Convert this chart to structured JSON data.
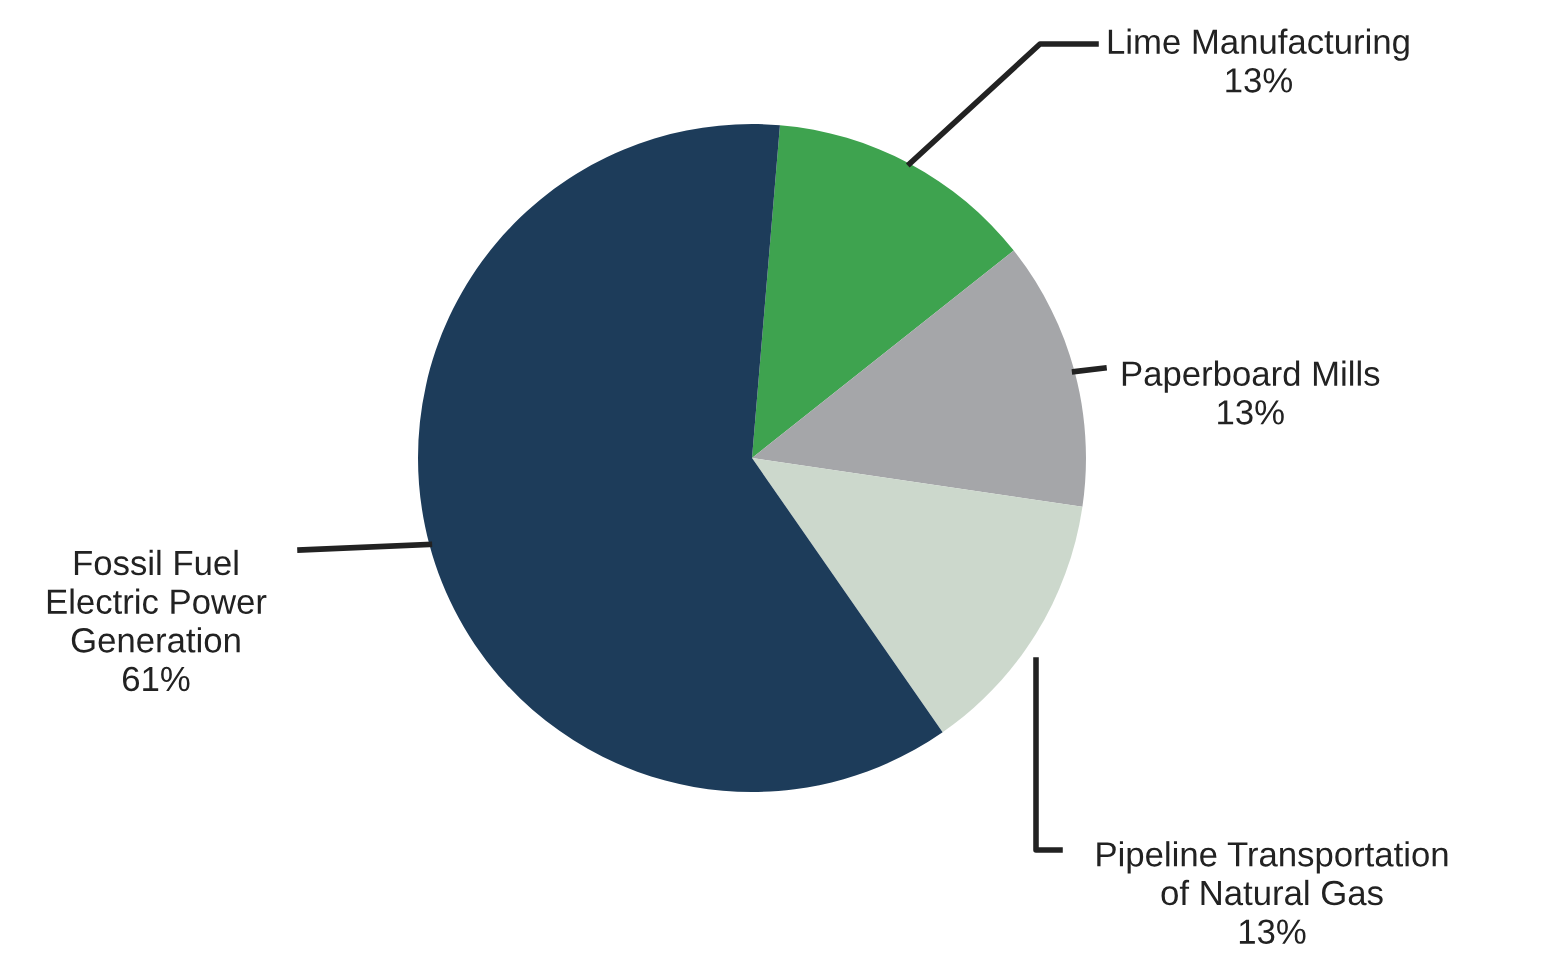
{
  "chart_data": {
    "type": "pie",
    "categories": [
      "Lime Manufacturing",
      "Paperboard Mills",
      "Pipeline Transportation\nof Natural Gas",
      "Fossil Fuel\nElectric Power\nGeneration"
    ],
    "values": [
      13,
      13,
      13,
      61
    ],
    "colors": [
      "#3ea34f",
      "#a5a6a9",
      "#ccd8cc",
      "#1d3c5a"
    ],
    "value_labels": [
      "13%",
      "13%",
      "13%",
      "61%"
    ]
  }
}
